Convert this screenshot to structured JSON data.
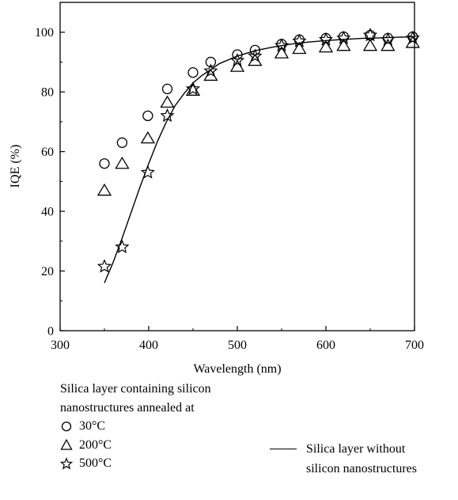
{
  "chart_data": {
    "type": "scatter",
    "xlabel": "Wavelength (nm)",
    "ylabel": "IQE (%)",
    "xlim": [
      300,
      700
    ],
    "ylim": [
      0,
      110
    ],
    "xticks": [
      300,
      400,
      500,
      600,
      700
    ],
    "yticks": [
      0,
      20,
      40,
      60,
      80,
      100
    ],
    "grid": false,
    "series": [
      {
        "name": "30°C",
        "marker": "circle",
        "x": [
          350,
          370,
          399,
          421,
          450,
          470,
          500,
          520,
          550,
          570,
          600,
          620,
          650,
          670,
          698
        ],
        "y": [
          56,
          63,
          72,
          81,
          86.5,
          90,
          92.5,
          94,
          96,
          97.5,
          98,
          98.5,
          99,
          98,
          98.5
        ]
      },
      {
        "name": "200°C",
        "marker": "triangle",
        "x": [
          350,
          370,
          399,
          421,
          450,
          470,
          500,
          520,
          550,
          570,
          600,
          620,
          650,
          670,
          698
        ],
        "y": [
          47,
          56,
          64.5,
          76.5,
          80.5,
          85.5,
          88.5,
          90.5,
          93,
          94.5,
          95,
          95.5,
          95.5,
          95.5,
          96.5
        ]
      },
      {
        "name": "500°C",
        "marker": "star",
        "x": [
          350,
          370,
          399,
          421,
          450,
          470,
          500,
          520,
          550,
          570,
          600,
          620,
          650,
          670,
          698
        ],
        "y": [
          21.5,
          28,
          53,
          72,
          81,
          87,
          90.5,
          92,
          95.5,
          97,
          97.5,
          98,
          99,
          97.5,
          98
        ]
      },
      {
        "name": "Silica layer without silicon nanostructures",
        "marker": "line",
        "x": [
          350,
          360,
          370,
          380,
          390,
          400,
          410,
          420,
          430,
          440,
          450,
          460,
          470,
          480,
          500,
          520,
          540,
          560,
          580,
          600,
          620,
          640,
          660,
          680,
          700
        ],
        "y": [
          16,
          23,
          31,
          39.5,
          48,
          56,
          63.5,
          70,
          75.5,
          79.5,
          83,
          85.5,
          87.5,
          89.5,
          92,
          93.8,
          95,
          96,
          96.7,
          97.2,
          97.6,
          97.9,
          98.1,
          98.3,
          98.5
        ]
      }
    ]
  },
  "legend": {
    "heading_line1": "Silica layer containing silicon",
    "heading_line2": "nanostructures annealed at",
    "item_circle": "30°C",
    "item_triangle": "200°C",
    "item_star": "500°C",
    "line_label_line1": "Silica layer without",
    "line_label_line2": "silicon nanostructures"
  }
}
